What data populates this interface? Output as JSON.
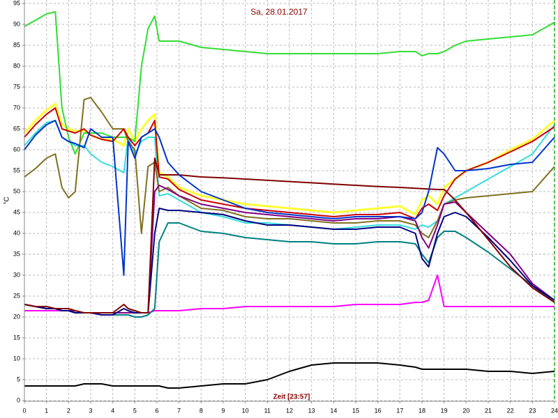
{
  "chart_data": {
    "type": "line",
    "title": "Sa, 28.01.2017",
    "x_label": "Zeit [23:57]",
    "y_label": "°C",
    "grid": true,
    "xlim": [
      0,
      24
    ],
    "xticks": [
      0,
      1,
      2,
      3,
      4,
      5,
      6,
      7,
      8,
      9,
      10,
      11,
      12,
      13,
      14,
      15,
      16,
      17,
      18,
      19,
      20,
      21,
      22,
      23,
      24
    ],
    "ylim": [
      0,
      95
    ],
    "yticks": [
      0,
      5,
      10,
      15,
      20,
      25,
      30,
      35,
      40,
      45,
      50,
      55,
      60,
      65,
      70,
      75,
      80,
      85,
      90,
      95
    ],
    "x": [
      0,
      0.5,
      1,
      1.4,
      1.7,
      2,
      2.3,
      2.7,
      3,
      3.5,
      4,
      4.5,
      4.7,
      5,
      5.3,
      5.6,
      5.9,
      6.1,
      6.5,
      7,
      8,
      9,
      10,
      11,
      12,
      13,
      14,
      15,
      16,
      17,
      17.7,
      18,
      18.3,
      18.7,
      19,
      19.5,
      20,
      21,
      22,
      23,
      24
    ],
    "series": [
      {
        "color": "#ffff33",
        "width": 3,
        "values": [
          64,
          67,
          69.5,
          71,
          66,
          65,
          64.5,
          64.5,
          63.5,
          62.5,
          62.5,
          61,
          65,
          62,
          65,
          67,
          68.5,
          54.5,
          53.5,
          51,
          49,
          48,
          47,
          46.5,
          46,
          45.5,
          45,
          45.5,
          46,
          46.5,
          44.5,
          48,
          49,
          47,
          51,
          53,
          55,
          57,
          60,
          62.5,
          67
        ]
      },
      {
        "color": "#33dddd",
        "width": 2,
        "values": [
          61,
          64,
          66.5,
          67,
          63,
          62,
          61,
          61,
          59,
          57,
          56,
          54.5,
          63,
          59,
          62,
          63,
          63,
          49,
          49.5,
          48,
          45,
          44,
          42.5,
          42.5,
          42,
          41.5,
          41,
          41.5,
          42,
          42,
          41,
          42,
          41.5,
          43,
          47,
          48.5,
          50,
          53,
          56,
          59,
          66
        ]
      },
      {
        "color": "#33dd33",
        "width": 2,
        "values": [
          89.5,
          91,
          92.5,
          93,
          70,
          63,
          59,
          64,
          64,
          64,
          63,
          63,
          63,
          62,
          80,
          89,
          92,
          86,
          86,
          86,
          84.5,
          84,
          83.5,
          83,
          83,
          83,
          83,
          83,
          83,
          83.5,
          83.5,
          82.5,
          83,
          83,
          83.5,
          85,
          86,
          86.5,
          87,
          87.5,
          90.5
        ]
      },
      {
        "color": "#ff00ff",
        "width": 2,
        "values": [
          21.5,
          21.5,
          21.5,
          21.5,
          21.5,
          21.5,
          21,
          21,
          21,
          21,
          21,
          21,
          21,
          21,
          21,
          21,
          21.5,
          21.5,
          21.5,
          21.5,
          22,
          22,
          22.5,
          22.5,
          22.5,
          22.5,
          22.5,
          23,
          23,
          23,
          23.5,
          23.5,
          24,
          30,
          22.5,
          22.5,
          22.5,
          22.5,
          22.5,
          22.5,
          22.5
        ]
      },
      {
        "color": "#807020",
        "width": 2,
        "values": [
          53.5,
          55.5,
          58,
          59,
          51,
          48.5,
          50,
          72,
          72.5,
          69,
          65,
          65,
          62,
          60,
          40,
          56,
          57,
          50,
          51,
          49,
          46,
          45.5,
          44,
          43.5,
          43.5,
          43,
          42.5,
          42.5,
          43,
          43,
          42,
          40,
          39,
          43,
          47,
          48,
          48.5,
          49,
          49.5,
          50,
          56
        ]
      },
      {
        "color": "#008080",
        "width": 2,
        "values": [
          23,
          22.5,
          22,
          22,
          21.5,
          21.5,
          21,
          21,
          21,
          20.5,
          20.5,
          20.5,
          20.5,
          20,
          20,
          20.5,
          22,
          38,
          42.5,
          42.5,
          40.5,
          40,
          39,
          38.5,
          38,
          38,
          37.5,
          37.5,
          38,
          38,
          37.5,
          35,
          33,
          39,
          40.5,
          40.5,
          39,
          35.5,
          31.5,
          27.5,
          23.5
        ]
      },
      {
        "color": "#800080",
        "width": 2,
        "values": [
          23,
          22.5,
          22,
          22,
          21.5,
          21.5,
          21.5,
          21,
          21,
          21,
          21,
          21,
          21,
          21,
          21,
          21,
          50,
          51.5,
          50.5,
          49,
          47,
          46,
          45,
          44.5,
          44,
          43.5,
          43,
          43.5,
          43.5,
          44,
          43,
          39,
          36.5,
          42,
          47,
          47.5,
          45,
          40,
          35,
          28,
          24
        ]
      },
      {
        "color": "#000080",
        "width": 2,
        "values": [
          23,
          22.5,
          22,
          22,
          21.5,
          21.5,
          21,
          21,
          21,
          20.5,
          20.5,
          22,
          21.5,
          21,
          21,
          21,
          40,
          46,
          45.5,
          45.5,
          45,
          44.5,
          43,
          42,
          42,
          41.5,
          41,
          41,
          41.5,
          41.5,
          40,
          34,
          32,
          40,
          44,
          45,
          44,
          39,
          33.5,
          27.5,
          24
        ]
      },
      {
        "color": "#800000",
        "width": 2,
        "values": [
          23,
          22.5,
          22.5,
          22,
          22,
          22,
          21.5,
          21,
          21,
          21,
          21,
          23,
          22,
          21.5,
          21,
          21,
          58,
          54,
          54,
          54,
          53.5,
          53.3,
          53,
          52.7,
          52.4,
          52.1,
          51.8,
          51.5,
          51.2,
          51,
          50.8,
          50.7,
          50.6,
          50.5,
          50.5,
          48,
          45,
          38.5,
          32,
          27,
          23.5
        ]
      },
      {
        "color": "#cc0000",
        "width": 2,
        "values": [
          63,
          66,
          68.5,
          70,
          65,
          64.5,
          64,
          65,
          63.5,
          62.5,
          62,
          65,
          63,
          61,
          63,
          64,
          67,
          53.5,
          53,
          50.5,
          48,
          47,
          46,
          45.5,
          45,
          44.5,
          44,
          44.5,
          44.5,
          45,
          43.5,
          46,
          47,
          45.5,
          49,
          53,
          55,
          57,
          59.5,
          62,
          65.5
        ]
      },
      {
        "color": "#0033cc",
        "width": 2,
        "values": [
          60,
          63.5,
          66,
          67,
          63,
          62,
          61.5,
          60.5,
          65,
          63,
          63,
          30,
          62,
          58,
          63,
          64,
          65,
          63,
          57,
          54,
          50,
          48,
          46,
          45,
          44.5,
          44,
          43.5,
          44,
          44,
          44,
          43.5,
          45,
          50,
          60.5,
          59,
          55,
          55,
          55.5,
          56.5,
          57,
          63
        ]
      },
      {
        "color": "#000000",
        "width": 2,
        "values": [
          3.5,
          3.5,
          3.5,
          3.5,
          3.5,
          3.5,
          3.5,
          4,
          4,
          4,
          3.5,
          3.5,
          3.5,
          3.5,
          3.5,
          3.5,
          3.5,
          3.5,
          3,
          3,
          3.5,
          4,
          4,
          5,
          7,
          8.5,
          9,
          9,
          9,
          8.5,
          8,
          7.5,
          7.5,
          7.5,
          7.5,
          7.5,
          7.5,
          7,
          7,
          6.5,
          7
        ]
      }
    ]
  }
}
